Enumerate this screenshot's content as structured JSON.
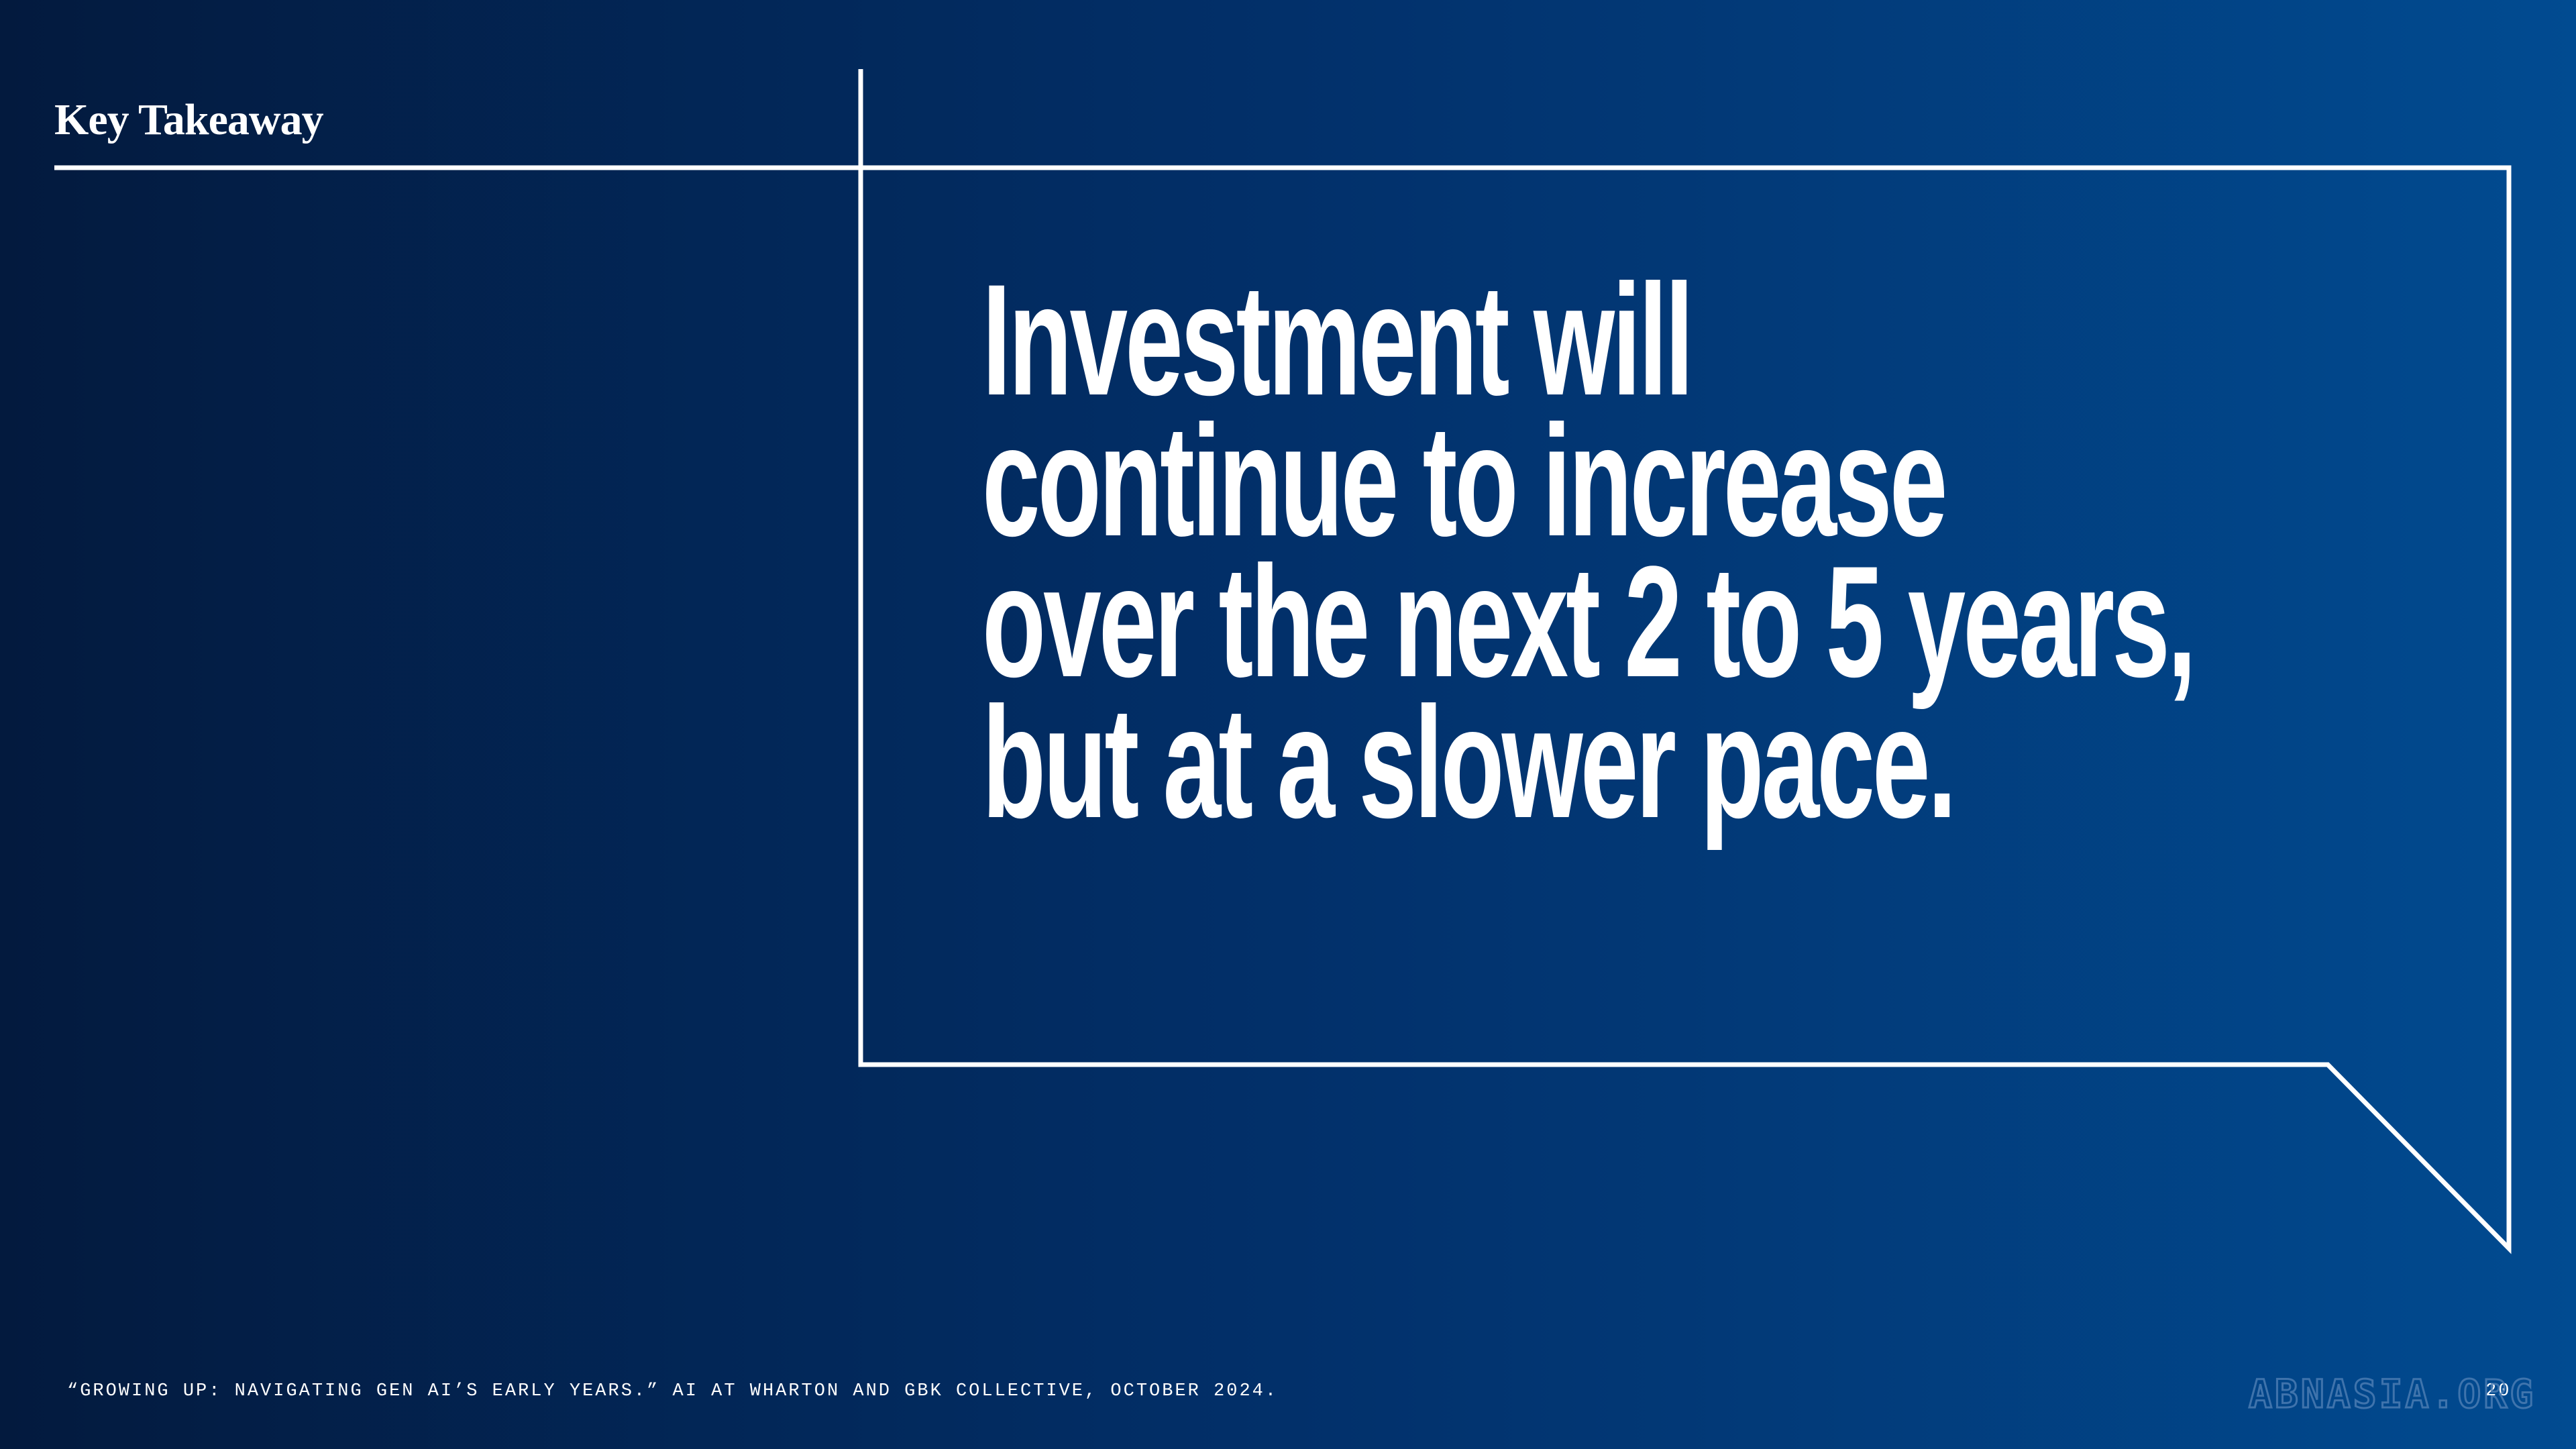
{
  "header": {
    "title": "Key Takeaway"
  },
  "headline": {
    "lines": [
      "Investment will",
      "continue to increase",
      "over the next 2 to 5 years,",
      "but at a slower pace."
    ]
  },
  "footer": {
    "citation": "“GROWING UP: NAVIGATING GEN AI’S EARLY YEARS.” AI AT WHARTON AND GBK COLLECTIVE, OCTOBER 2024.",
    "page": "20"
  },
  "watermark": "ABNASIA.ORG"
}
